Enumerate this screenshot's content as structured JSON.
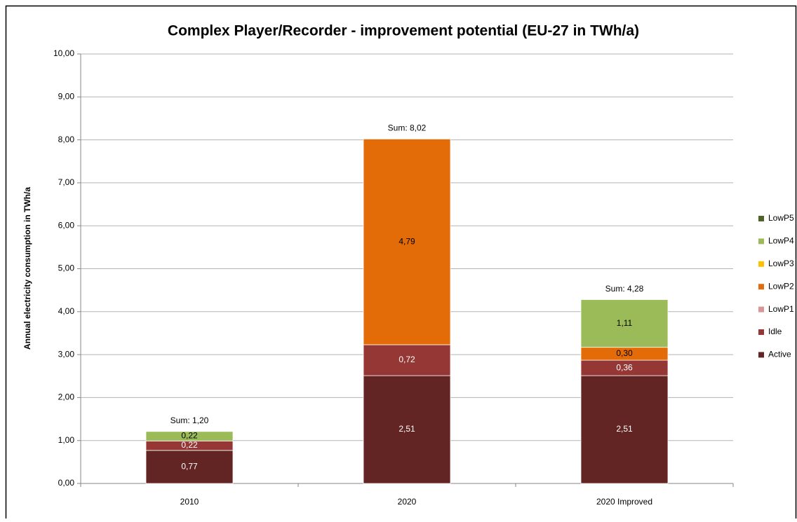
{
  "chart_data": {
    "type": "stacked_bar",
    "title": "Complex Player/Recorder - improvement potential  (EU-27 in TWh/a)",
    "y_label": "Annual electricity consumption in TWh/a",
    "categories": [
      "2010",
      "2020",
      "2020 Improved"
    ],
    "series": [
      {
        "name": "Active",
        "color": "#632523",
        "values": [
          0.77,
          2.51,
          2.51
        ],
        "value_labels": [
          "0,77",
          "2,51",
          "2,51"
        ]
      },
      {
        "name": "Idle",
        "color": "#953735",
        "values": [
          0.22,
          0.72,
          0.36
        ],
        "value_labels": [
          "0,22",
          "0,72",
          "0,36"
        ]
      },
      {
        "name": "LowP1",
        "color": "#d99694",
        "values": [
          0,
          0,
          0
        ],
        "value_labels": [
          null,
          null,
          null
        ]
      },
      {
        "name": "LowP2",
        "color": "#e36c09",
        "values": [
          0,
          4.79,
          0.3
        ],
        "value_labels": [
          null,
          "4,79",
          "0,30"
        ]
      },
      {
        "name": "LowP3",
        "color": "#ffc000",
        "values": [
          0,
          0,
          0
        ],
        "value_labels": [
          null,
          null,
          null
        ]
      },
      {
        "name": "LowP4",
        "color": "#9bbb59",
        "values": [
          0.22,
          0,
          1.11
        ],
        "value_labels": [
          "0,22",
          null,
          "1,11"
        ]
      },
      {
        "name": "LowP5",
        "color": "#4f6228",
        "values": [
          0,
          0,
          0
        ],
        "value_labels": [
          null,
          null,
          null
        ]
      }
    ],
    "sum_labels": [
      "Sum: 1,20",
      "Sum: 8,02",
      "Sum: 4,28"
    ],
    "ylim": [
      0,
      10
    ],
    "yticks": [
      {
        "value": 0,
        "label": "0,00"
      },
      {
        "value": 1,
        "label": "1,00"
      },
      {
        "value": 2,
        "label": "2,00"
      },
      {
        "value": 3,
        "label": "3,00"
      },
      {
        "value": 4,
        "label": "4,00"
      },
      {
        "value": 5,
        "label": "5,00"
      },
      {
        "value": 6,
        "label": "6,00"
      },
      {
        "value": 7,
        "label": "7,00"
      },
      {
        "value": 8,
        "label": "8,00"
      },
      {
        "value": 9,
        "label": "9,00"
      },
      {
        "value": 10,
        "label": "10,00"
      }
    ],
    "grid": true,
    "legend": "right"
  }
}
